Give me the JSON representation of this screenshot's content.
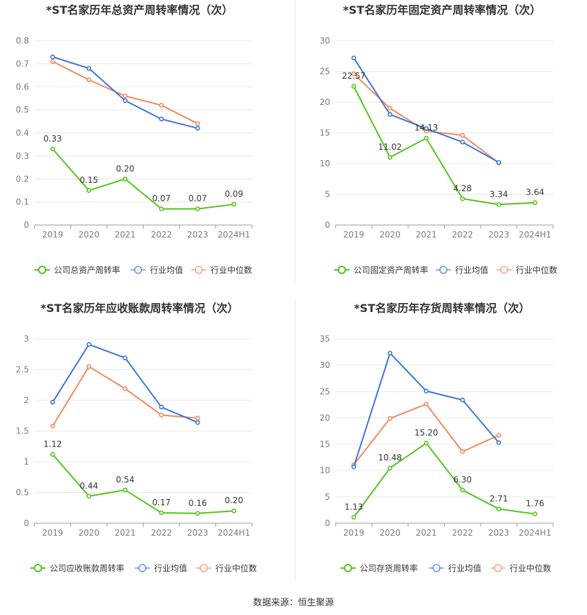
{
  "colors": {
    "company": "#52c41a",
    "avg": "#3b73d9",
    "median": "#f0895f",
    "grid": "#e8e8e8",
    "axis": "#999999",
    "text": "#333333",
    "tick": "#7a7a7a"
  },
  "source_text": "数据来源：恒生聚源",
  "chart_data": [
    {
      "type": "line",
      "title": "*ST名家历年总资产周转率情况（次）",
      "categories": [
        "2019",
        "2020",
        "2021",
        "2022",
        "2023",
        "2024H1"
      ],
      "ylim": [
        0,
        0.8
      ],
      "yticks": [
        "0",
        "0.1",
        "0.2",
        "0.3",
        "0.4",
        "0.5",
        "0.6",
        "0.7",
        "0.8"
      ],
      "grid": true,
      "legend_position": "bottom",
      "series": [
        {
          "name": "公司总资产周转率",
          "key": "company",
          "values": [
            0.33,
            0.15,
            0.2,
            0.07,
            0.07,
            0.09
          ],
          "labels": [
            "0.33",
            "0.15",
            "0.20",
            "0.07",
            "0.07",
            "0.09"
          ]
        },
        {
          "name": "行业均值",
          "key": "avg",
          "values": [
            0.73,
            0.68,
            0.54,
            0.46,
            0.42,
            null
          ]
        },
        {
          "name": "行业中位数",
          "key": "median",
          "values": [
            0.71,
            0.63,
            0.56,
            0.52,
            0.44,
            null
          ]
        }
      ]
    },
    {
      "type": "line",
      "title": "*ST名家历年固定资产周转率情况（次）",
      "categories": [
        "2019",
        "2020",
        "2021",
        "2022",
        "2023",
        "2024H1"
      ],
      "ylim": [
        0,
        30
      ],
      "yticks": [
        "0",
        "5",
        "10",
        "15",
        "20",
        "25",
        "30"
      ],
      "grid": true,
      "legend_position": "bottom",
      "series": [
        {
          "name": "公司固定资产周转率",
          "key": "company",
          "values": [
            22.57,
            11.02,
            14.13,
            4.28,
            3.34,
            3.64
          ],
          "labels": [
            "22.57",
            "11.02",
            "14.13",
            "4.28",
            "3.34",
            "3.64"
          ]
        },
        {
          "name": "行业均值",
          "key": "avg",
          "values": [
            27.2,
            18.0,
            15.7,
            13.5,
            10.2,
            null
          ]
        },
        {
          "name": "行业中位数",
          "key": "median",
          "values": [
            24.6,
            19.0,
            15.3,
            14.6,
            10.1,
            null
          ]
        }
      ]
    },
    {
      "type": "line",
      "title": "*ST名家历年应收账款周转率情况（次）",
      "categories": [
        "2019",
        "2020",
        "2021",
        "2022",
        "2023",
        "2024H1"
      ],
      "ylim": [
        0,
        3
      ],
      "yticks": [
        "0",
        "0.5",
        "1",
        "1.5",
        "2",
        "2.5",
        "3"
      ],
      "grid": true,
      "legend_position": "bottom",
      "series": [
        {
          "name": "公司应收账款周转率",
          "key": "company",
          "values": [
            1.12,
            0.44,
            0.54,
            0.17,
            0.16,
            0.2
          ],
          "labels": [
            "1.12",
            "0.44",
            "0.54",
            "0.17",
            "0.16",
            "0.20"
          ]
        },
        {
          "name": "行业均值",
          "key": "avg",
          "values": [
            1.97,
            2.91,
            2.69,
            1.89,
            1.64,
            null
          ]
        },
        {
          "name": "行业中位数",
          "key": "median",
          "values": [
            1.58,
            2.55,
            2.19,
            1.76,
            1.71,
            null
          ]
        }
      ]
    },
    {
      "type": "line",
      "title": "*ST名家历年存货周转率情况（次）",
      "categories": [
        "2019",
        "2020",
        "2021",
        "2022",
        "2023",
        "2024H1"
      ],
      "ylim": [
        0,
        35
      ],
      "yticks": [
        "0",
        "5",
        "10",
        "15",
        "20",
        "25",
        "30",
        "35"
      ],
      "grid": true,
      "legend_position": "bottom",
      "series": [
        {
          "name": "公司存货周转率",
          "key": "company",
          "values": [
            1.13,
            10.48,
            15.2,
            6.3,
            2.71,
            1.76
          ],
          "labels": [
            "1.13",
            "10.48",
            "15.20",
            "6.30",
            "2.71",
            "1.76"
          ]
        },
        {
          "name": "行业均值",
          "key": "avg",
          "values": [
            10.7,
            32.3,
            25.1,
            23.4,
            15.3,
            null
          ]
        },
        {
          "name": "行业中位数",
          "key": "median",
          "values": [
            11.1,
            19.9,
            22.6,
            13.6,
            16.7,
            null
          ]
        }
      ]
    }
  ]
}
